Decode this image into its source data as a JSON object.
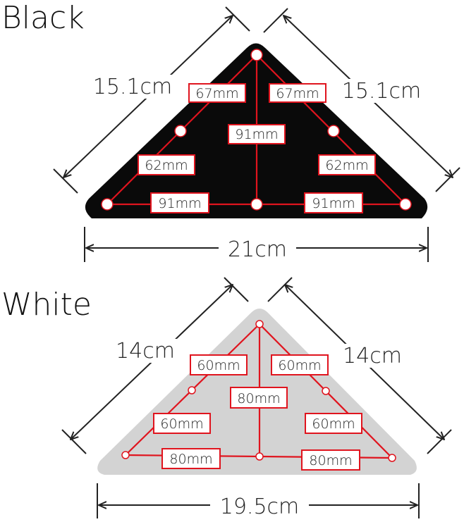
{
  "black": {
    "title": "Black",
    "left_side": "15.1cm",
    "right_side": "15.1cm",
    "base": "21cm",
    "labels": {
      "top_left": "67mm",
      "top_right": "67mm",
      "center": "91mm",
      "mid_left": "62mm",
      "mid_right": "62mm",
      "bottom_left": "91mm",
      "bottom_right": "91mm"
    },
    "fill_color": "#0a0a0a"
  },
  "white": {
    "title": "White",
    "left_side": "14cm",
    "right_side": "14cm",
    "base": "19.5cm",
    "labels": {
      "top_left": "60mm",
      "top_right": "60mm",
      "center": "80mm",
      "mid_left": "60mm",
      "mid_right": "60mm",
      "bottom_left": "80mm",
      "bottom_right": "80mm"
    },
    "fill_color": "#d3d3d3"
  },
  "line_color": "#e0141e"
}
